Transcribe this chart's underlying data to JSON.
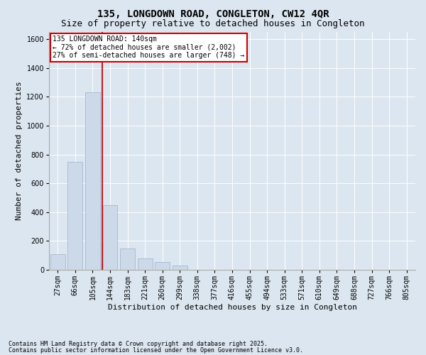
{
  "title_line1": "135, LONGDOWN ROAD, CONGLETON, CW12 4QR",
  "title_line2": "Size of property relative to detached houses in Congleton",
  "xlabel": "Distribution of detached houses by size in Congleton",
  "ylabel": "Number of detached properties",
  "categories": [
    "27sqm",
    "66sqm",
    "105sqm",
    "144sqm",
    "183sqm",
    "221sqm",
    "260sqm",
    "299sqm",
    "338sqm",
    "377sqm",
    "416sqm",
    "455sqm",
    "494sqm",
    "533sqm",
    "571sqm",
    "610sqm",
    "649sqm",
    "688sqm",
    "727sqm",
    "766sqm",
    "805sqm"
  ],
  "bar_values": [
    110,
    750,
    1230,
    450,
    150,
    80,
    55,
    30,
    0,
    0,
    0,
    0,
    0,
    0,
    0,
    0,
    0,
    0,
    0,
    0,
    0
  ],
  "bar_color": "#ccd9e8",
  "bar_edgecolor": "#9ab0c8",
  "vline_color": "#cc0000",
  "annotation_text": "135 LONGDOWN ROAD: 140sqm\n← 72% of detached houses are smaller (2,002)\n27% of semi-detached houses are larger (748) →",
  "annotation_box_facecolor": "#ffffff",
  "annotation_box_edgecolor": "#cc0000",
  "background_color": "#dce6f0",
  "plot_background": "#dce6f0",
  "footer_line1": "Contains HM Land Registry data © Crown copyright and database right 2025.",
  "footer_line2": "Contains public sector information licensed under the Open Government Licence v3.0.",
  "ylim": [
    0,
    1650
  ],
  "yticks": [
    0,
    200,
    400,
    600,
    800,
    1000,
    1200,
    1400,
    1600
  ],
  "title_fontsize": 10,
  "subtitle_fontsize": 9,
  "tick_fontsize": 7,
  "label_fontsize": 8,
  "annot_fontsize": 7,
  "footer_fontsize": 6
}
